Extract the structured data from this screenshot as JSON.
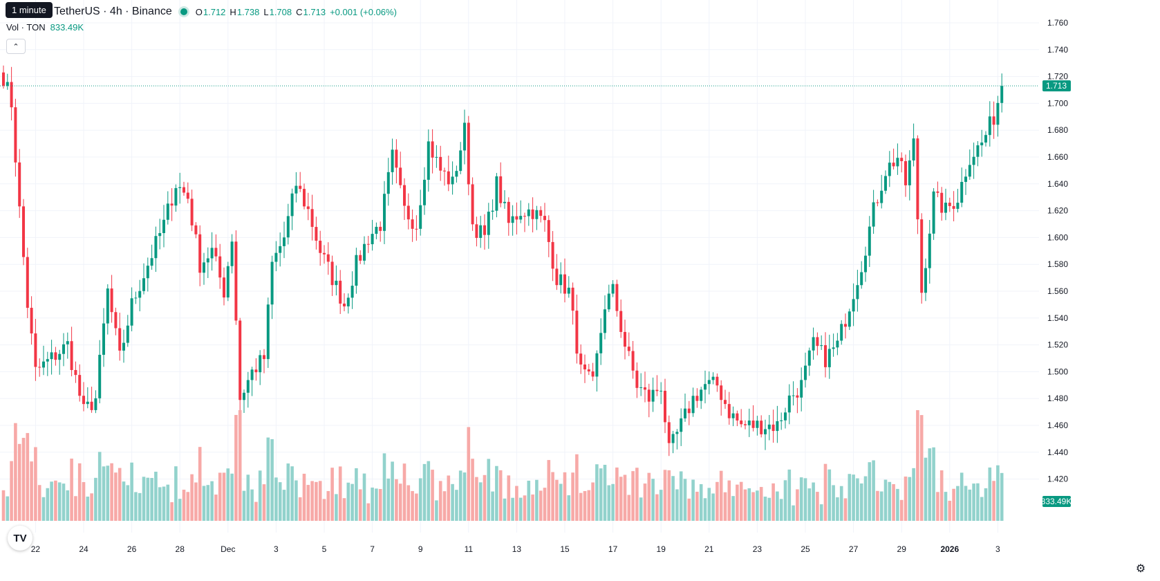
{
  "header": {
    "tooltip": "1 minute",
    "symbol": "TetherUS · 4h · Binance",
    "ohlc": [
      {
        "k": "O",
        "v": "1.712"
      },
      {
        "k": "H",
        "v": "1.738"
      },
      {
        "k": "L",
        "v": "1.708"
      },
      {
        "k": "C",
        "v": "1.713"
      }
    ],
    "change": "+0.001 (+0.06%)"
  },
  "volume_legend": {
    "label": "Vol · TON",
    "value": "833.49K"
  },
  "colors": {
    "up": "#089981",
    "down": "#f23645",
    "up_vol": "#92d2cc",
    "down_vol": "#f7a9a7",
    "grid": "#f0f3fa",
    "axis_text": "#131722"
  },
  "icons": {
    "collapse": "chevron-up-icon",
    "logo": "tradingview-logo-icon",
    "settings": "gear-icon"
  },
  "logo_text": "TV",
  "chart_data": {
    "type": "candlestick",
    "y_axis": {
      "min": 1.41,
      "max": 1.77,
      "ticks": [
        "1.760",
        "1.740",
        "1.720",
        "1.700",
        "1.680",
        "1.660",
        "1.640",
        "1.620",
        "1.600",
        "1.580",
        "1.560",
        "1.540",
        "1.520",
        "1.500",
        "1.480",
        "1.460",
        "1.440",
        "1.420"
      ]
    },
    "last_price": {
      "value": 1.713,
      "label": "1.713"
    },
    "volume_label": "833.49K",
    "x_ticks": [
      {
        "label": "22",
        "index": 8
      },
      {
        "label": "24",
        "index": 20
      },
      {
        "label": "26",
        "index": 32
      },
      {
        "label": "28",
        "index": 44
      },
      {
        "label": "Dec",
        "index": 56
      },
      {
        "label": "3",
        "index": 68
      },
      {
        "label": "5",
        "index": 80
      },
      {
        "label": "7",
        "index": 92
      },
      {
        "label": "9",
        "index": 104
      },
      {
        "label": "11",
        "index": 116
      },
      {
        "label": "13",
        "index": 128
      },
      {
        "label": "15",
        "index": 140
      },
      {
        "label": "17",
        "index": 152
      },
      {
        "label": "19",
        "index": 164
      },
      {
        "label": "21",
        "index": 176
      },
      {
        "label": "23",
        "index": 188
      },
      {
        "label": "25",
        "index": 200
      },
      {
        "label": "27",
        "index": 212
      },
      {
        "label": "29",
        "index": 224
      },
      {
        "label": "2026",
        "index": 236
      },
      {
        "label": "3",
        "index": 248
      }
    ],
    "anchors": [
      [
        0,
        1.72
      ],
      [
        2,
        1.7
      ],
      [
        4,
        1.62
      ],
      [
        6,
        1.55
      ],
      [
        8,
        1.5
      ],
      [
        12,
        1.51
      ],
      [
        16,
        1.52
      ],
      [
        20,
        1.47
      ],
      [
        23,
        1.48
      ],
      [
        26,
        1.56
      ],
      [
        29,
        1.51
      ],
      [
        32,
        1.55
      ],
      [
        36,
        1.58
      ],
      [
        40,
        1.61
      ],
      [
        43,
        1.64
      ],
      [
        46,
        1.63
      ],
      [
        49,
        1.58
      ],
      [
        52,
        1.59
      ],
      [
        55,
        1.56
      ],
      [
        57,
        1.6
      ],
      [
        59,
        1.48
      ],
      [
        62,
        1.5
      ],
      [
        65,
        1.51
      ],
      [
        67,
        1.58
      ],
      [
        70,
        1.6
      ],
      [
        73,
        1.64
      ],
      [
        76,
        1.62
      ],
      [
        79,
        1.59
      ],
      [
        82,
        1.57
      ],
      [
        85,
        1.55
      ],
      [
        88,
        1.58
      ],
      [
        91,
        1.6
      ],
      [
        94,
        1.61
      ],
      [
        97,
        1.66
      ],
      [
        100,
        1.62
      ],
      [
        103,
        1.61
      ],
      [
        106,
        1.67
      ],
      [
        109,
        1.65
      ],
      [
        112,
        1.64
      ],
      [
        115,
        1.68
      ],
      [
        117,
        1.61
      ],
      [
        120,
        1.6
      ],
      [
        123,
        1.64
      ],
      [
        126,
        1.61
      ],
      [
        129,
        1.62
      ],
      [
        132,
        1.62
      ],
      [
        135,
        1.61
      ],
      [
        138,
        1.57
      ],
      [
        141,
        1.56
      ],
      [
        144,
        1.5
      ],
      [
        147,
        1.49
      ],
      [
        150,
        1.55
      ],
      [
        152,
        1.56
      ],
      [
        155,
        1.52
      ],
      [
        158,
        1.49
      ],
      [
        161,
        1.48
      ],
      [
        164,
        1.49
      ],
      [
        166,
        1.44
      ],
      [
        169,
        1.46
      ],
      [
        172,
        1.48
      ],
      [
        175,
        1.49
      ],
      [
        178,
        1.49
      ],
      [
        181,
        1.47
      ],
      [
        184,
        1.46
      ],
      [
        187,
        1.46
      ],
      [
        190,
        1.46
      ],
      [
        193,
        1.46
      ],
      [
        196,
        1.48
      ],
      [
        199,
        1.49
      ],
      [
        202,
        1.52
      ],
      [
        205,
        1.51
      ],
      [
        208,
        1.52
      ],
      [
        211,
        1.55
      ],
      [
        214,
        1.58
      ],
      [
        217,
        1.62
      ],
      [
        220,
        1.65
      ],
      [
        223,
        1.66
      ],
      [
        225,
        1.64
      ],
      [
        227,
        1.67
      ],
      [
        229,
        1.56
      ],
      [
        232,
        1.63
      ],
      [
        235,
        1.62
      ],
      [
        238,
        1.63
      ],
      [
        241,
        1.66
      ],
      [
        244,
        1.67
      ],
      [
        247,
        1.69
      ],
      [
        249,
        1.713
      ]
    ],
    "count": 250
  }
}
